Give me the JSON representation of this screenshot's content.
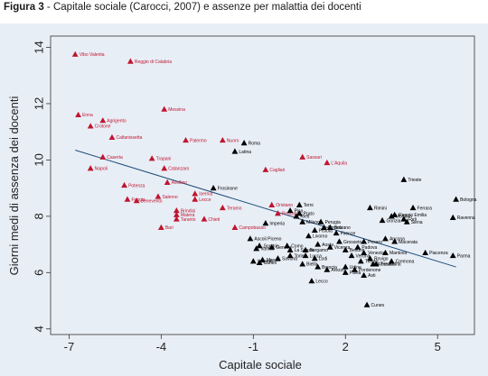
{
  "figure": {
    "number": "Figura 3",
    "separator": " - ",
    "caption": "Capitale sociale (Carocci, 2007) e assenze per malattia dei docenti"
  },
  "colors": {
    "panel_background": "#e8eef6",
    "south_points": "#c0152f",
    "north_points": "#000000",
    "fit_line": "#1f4e79"
  },
  "chart_data": {
    "type": "scatter",
    "xlabel": "Capitale sociale",
    "ylabel": "Giorni medi di assenza dei docenti",
    "xlim": [
      -7.6,
      6.2
    ],
    "ylim": [
      3.8,
      14.4
    ],
    "xticks": [
      -7,
      -4,
      -1,
      2,
      5
    ],
    "yticks": [
      4,
      6,
      8,
      10,
      12,
      14
    ],
    "grid": false,
    "fit_line": {
      "x": [
        -6.8,
        5.6
      ],
      "y": [
        10.35,
        6.2
      ]
    },
    "series": [
      {
        "group": "south",
        "points": [
          {
            "label": "Vibo Valenta",
            "x": -6.8,
            "y": 13.75
          },
          {
            "label": "Reggio di Calabria",
            "x": -5.0,
            "y": 13.5
          },
          {
            "label": "Enna",
            "x": -6.7,
            "y": 11.6
          },
          {
            "label": "Agrigento",
            "x": -5.9,
            "y": 11.4
          },
          {
            "label": "Crotone",
            "x": -6.3,
            "y": 11.2
          },
          {
            "label": "Messina",
            "x": -3.9,
            "y": 11.8
          },
          {
            "label": "Caltanissetta",
            "x": -5.6,
            "y": 10.8
          },
          {
            "label": "Palermo",
            "x": -3.2,
            "y": 10.7
          },
          {
            "label": "Nuoro",
            "x": -2.0,
            "y": 10.7
          },
          {
            "label": "Caserta",
            "x": -5.9,
            "y": 10.1
          },
          {
            "label": "Trapani",
            "x": -4.3,
            "y": 10.05
          },
          {
            "label": "Napoli",
            "x": -6.3,
            "y": 9.7
          },
          {
            "label": "Catanzaro",
            "x": -3.9,
            "y": 9.7
          },
          {
            "label": "Cagliari",
            "x": -0.6,
            "y": 9.65
          },
          {
            "label": "Sassari",
            "x": 0.6,
            "y": 10.1
          },
          {
            "label": "L'Aquila",
            "x": 1.4,
            "y": 9.9
          },
          {
            "label": "Potenza",
            "x": -5.2,
            "y": 9.1
          },
          {
            "label": "Avellino",
            "x": -3.8,
            "y": 9.2
          },
          {
            "label": "Foggia",
            "x": -5.1,
            "y": 8.6
          },
          {
            "label": "Benevento",
            "x": -4.8,
            "y": 8.55
          },
          {
            "label": "Salerno",
            "x": -4.1,
            "y": 8.7
          },
          {
            "label": "Lecce",
            "x": -2.9,
            "y": 8.6
          },
          {
            "label": "Isernia",
            "x": -2.9,
            "y": 8.8
          },
          {
            "label": "Teramo",
            "x": -2.0,
            "y": 8.3
          },
          {
            "label": "Brindisi",
            "x": -3.5,
            "y": 8.2
          },
          {
            "label": "Matera",
            "x": -3.5,
            "y": 8.05
          },
          {
            "label": "Taranto",
            "x": -3.5,
            "y": 7.9
          },
          {
            "label": "Chieti",
            "x": -2.6,
            "y": 7.9
          },
          {
            "label": "Bari",
            "x": -4.0,
            "y": 7.6
          },
          {
            "label": "Campobasso",
            "x": -1.6,
            "y": 7.6
          },
          {
            "label": "Oristano",
            "x": -0.4,
            "y": 8.4
          },
          {
            "label": "Pescara",
            "x": -0.2,
            "y": 8.1
          }
        ]
      },
      {
        "group": "north",
        "points": [
          {
            "label": "Roma",
            "x": -1.3,
            "y": 10.6
          },
          {
            "label": "Latina",
            "x": -1.6,
            "y": 10.3
          },
          {
            "label": "Frosinone",
            "x": -2.3,
            "y": 9.0
          },
          {
            "label": "Trieste",
            "x": 3.9,
            "y": 9.3
          },
          {
            "label": "Bologna",
            "x": 5.6,
            "y": 8.6
          },
          {
            "label": "Ferrara",
            "x": 4.2,
            "y": 8.3
          },
          {
            "label": "Ravenna",
            "x": 5.5,
            "y": 7.95
          },
          {
            "label": "Rimini",
            "x": 2.8,
            "y": 8.3
          },
          {
            "label": "Terni",
            "x": 0.5,
            "y": 8.4
          },
          {
            "label": "Rieti",
            "x": 0.4,
            "y": 8.0
          },
          {
            "label": "Pisa",
            "x": 0.2,
            "y": 8.2
          },
          {
            "label": "Prato",
            "x": 0.5,
            "y": 8.1
          },
          {
            "label": "Perugia",
            "x": 1.2,
            "y": 7.8
          },
          {
            "label": "Imperia",
            "x": -0.6,
            "y": 7.75
          },
          {
            "label": "Milano",
            "x": 0.6,
            "y": 7.8
          },
          {
            "label": "Novara",
            "x": 1.3,
            "y": 7.6
          },
          {
            "label": "Bolzano",
            "x": 1.5,
            "y": 7.6
          },
          {
            "label": "Pistoia",
            "x": 1.0,
            "y": 7.5
          },
          {
            "label": "Firenze",
            "x": 1.7,
            "y": 7.4
          },
          {
            "label": "Livorno",
            "x": 0.8,
            "y": 7.3
          },
          {
            "label": "Modena",
            "x": 3.5,
            "y": 8.0
          },
          {
            "label": "Reggio Emilia",
            "x": 3.6,
            "y": 8.05
          },
          {
            "label": "Gorizia",
            "x": 3.2,
            "y": 7.85
          },
          {
            "label": "Forli",
            "x": 3.9,
            "y": 7.9
          },
          {
            "label": "Siena",
            "x": 4.0,
            "y": 7.8
          },
          {
            "label": "Ascoli Piceno",
            "x": -1.1,
            "y": 7.2
          },
          {
            "label": "Sondrio",
            "x": -0.8,
            "y": 6.95
          },
          {
            "label": "Varese",
            "x": -0.9,
            "y": 6.85
          },
          {
            "label": "Genova",
            "x": -0.4,
            "y": 6.9
          },
          {
            "label": "Como",
            "x": 0.1,
            "y": 6.95
          },
          {
            "label": "La Spezia",
            "x": 0.2,
            "y": 6.8
          },
          {
            "label": "Torino",
            "x": 0.2,
            "y": 6.6
          },
          {
            "label": "Savona",
            "x": -0.2,
            "y": 6.5
          },
          {
            "label": "Massa",
            "x": -0.7,
            "y": 6.45
          },
          {
            "label": "Vercelli",
            "x": -1.0,
            "y": 6.4
          },
          {
            "label": "Cuneo",
            "x": -0.8,
            "y": 6.35
          },
          {
            "label": "Bergamo",
            "x": 0.7,
            "y": 6.8
          },
          {
            "label": "Lucca",
            "x": 0.7,
            "y": 6.6
          },
          {
            "label": "Biella",
            "x": 0.6,
            "y": 6.3
          },
          {
            "label": "Brescia",
            "x": 1.1,
            "y": 6.2
          },
          {
            "label": "Arezzo",
            "x": 1.4,
            "y": 6.1
          },
          {
            "label": "Lodi",
            "x": 1.0,
            "y": 6.5
          },
          {
            "label": "Vicenza",
            "x": 1.5,
            "y": 6.9
          },
          {
            "label": "Belluno",
            "x": 2.0,
            "y": 6.8
          },
          {
            "label": "Padova",
            "x": 2.4,
            "y": 6.9
          },
          {
            "label": "Verona",
            "x": 2.2,
            "y": 6.6
          },
          {
            "label": "Venezia",
            "x": 2.6,
            "y": 6.7
          },
          {
            "label": "Rovigo",
            "x": 2.8,
            "y": 6.5
          },
          {
            "label": "Treviso",
            "x": 3.0,
            "y": 6.3
          },
          {
            "label": "Udine",
            "x": 2.0,
            "y": 6.2
          },
          {
            "label": "Pordenone",
            "x": 2.3,
            "y": 6.1
          },
          {
            "label": "Trento",
            "x": 2.5,
            "y": 6.4
          },
          {
            "label": "Cremona",
            "x": 3.5,
            "y": 6.4
          },
          {
            "label": "Mantova",
            "x": 3.3,
            "y": 6.7
          },
          {
            "label": "Pavia",
            "x": 2.0,
            "y": 6.0
          },
          {
            "label": "Asti",
            "x": 2.6,
            "y": 5.9
          },
          {
            "label": "Alessandria",
            "x": 2.9,
            "y": 6.3
          },
          {
            "label": "Ancona",
            "x": 3.3,
            "y": 7.2
          },
          {
            "label": "Macerata",
            "x": 3.6,
            "y": 7.1
          },
          {
            "label": "Pesaro",
            "x": 2.6,
            "y": 7.1
          },
          {
            "label": "Grosseto",
            "x": 1.8,
            "y": 7.1
          },
          {
            "label": "Aosta",
            "x": 1.1,
            "y": 7.0
          },
          {
            "label": "Piacenza",
            "x": 4.6,
            "y": 6.7
          },
          {
            "label": "Parma",
            "x": 5.5,
            "y": 6.6
          },
          {
            "label": "Lecco",
            "x": 0.9,
            "y": 5.7
          },
          {
            "label": "Cuneo",
            "x": 2.7,
            "y": 4.85
          }
        ]
      }
    ]
  }
}
